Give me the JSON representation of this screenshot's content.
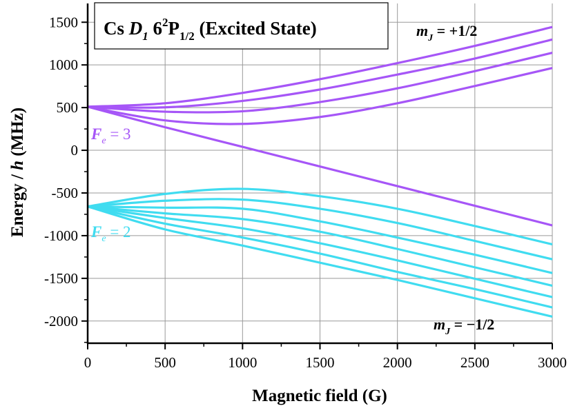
{
  "chart_data": {
    "type": "line",
    "title": {
      "pre": "Cs ",
      "d": "D",
      "d_sub": "1",
      "mid": " 6",
      "sup": "2",
      "p": "P",
      "p_sub": "1/2",
      "post": " (Excited State)"
    },
    "xlabel": "Magnetic field (G)",
    "ylabel": {
      "pre": "Energy / ",
      "h": "h",
      "post": " (MHz)"
    },
    "xlim": [
      0,
      3000
    ],
    "ylim": [
      -2260,
      1720
    ],
    "xticks": [
      0,
      500,
      1000,
      1500,
      2000,
      2500,
      3000
    ],
    "yticks": [
      -2000,
      -1500,
      -1000,
      -500,
      0,
      500,
      1000,
      1500
    ],
    "grid": true,
    "x": [
      0,
      500,
      1000,
      1500,
      2000,
      2500,
      3000
    ],
    "colors": {
      "upper": "#a656f7",
      "lower": "#40dcf0"
    },
    "series": [
      {
        "group": "upper",
        "values": [
          510,
          551,
          672,
          833,
          1021,
          1223,
          1444
        ]
      },
      {
        "group": "upper",
        "values": [
          510,
          503,
          578,
          712,
          887,
          1075,
          1298
        ]
      },
      {
        "group": "upper",
        "values": [
          510,
          452,
          457,
          565,
          726,
          927,
          1142
        ]
      },
      {
        "group": "upper",
        "values": [
          510,
          350,
          309,
          390,
          551,
          753,
          964
        ]
      },
      {
        "group": "upper",
        "values": [
          510,
          270,
          40,
          -190,
          -420,
          -650,
          -880
        ]
      },
      {
        "group": "lower",
        "values": [
          -659,
          -511,
          -452,
          -538,
          -685,
          -887,
          -1102
        ]
      },
      {
        "group": "lower",
        "values": [
          -659,
          -591,
          -578,
          -685,
          -852,
          -1062,
          -1277
        ]
      },
      {
        "group": "lower",
        "values": [
          -659,
          -672,
          -685,
          -833,
          -1022,
          -1223,
          -1438
        ]
      },
      {
        "group": "lower",
        "values": [
          -659,
          -739,
          -806,
          -954,
          -1156,
          -1371,
          -1586
        ]
      },
      {
        "group": "lower",
        "values": [
          -659,
          -793,
          -914,
          -1089,
          -1290,
          -1505,
          -1720
        ]
      },
      {
        "group": "lower",
        "values": [
          -659,
          -860,
          -1022,
          -1210,
          -1425,
          -1626,
          -1841
        ]
      },
      {
        "group": "lower",
        "values": [
          -659,
          -927,
          -1116,
          -1317,
          -1519,
          -1734,
          -1949
        ]
      }
    ],
    "annotations": {
      "mj_plus": {
        "m": "m",
        "sub": "J",
        "rest": " = +1/2"
      },
      "mj_minus": {
        "m": "m",
        "sub": "J",
        "rest": " = −1/2"
      },
      "f_upper": {
        "f": "F",
        "sub": "e",
        "rest": " = 3"
      },
      "f_lower": {
        "f": "F",
        "sub": "e",
        "rest": " = 2"
      }
    }
  }
}
